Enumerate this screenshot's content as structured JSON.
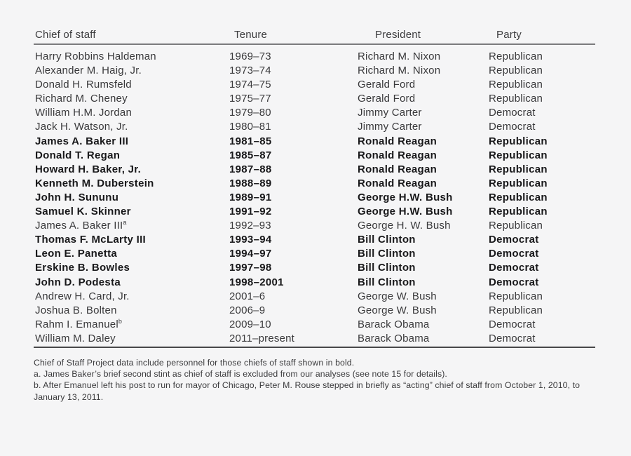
{
  "table": {
    "columns": [
      "Chief of staff",
      "Tenure",
      "President",
      "Party"
    ],
    "rows": [
      {
        "chief": "Harry Robbins Haldeman",
        "sup": "",
        "tenure": "1969–73",
        "president": "Richard M. Nixon",
        "party": "Republican",
        "bold": false
      },
      {
        "chief": "Alexander M. Haig, Jr.",
        "sup": "",
        "tenure": "1973–74",
        "president": "Richard M. Nixon",
        "party": "Republican",
        "bold": false
      },
      {
        "chief": "Donald H. Rumsfeld",
        "sup": "",
        "tenure": "1974–75",
        "president": "Gerald Ford",
        "party": "Republican",
        "bold": false
      },
      {
        "chief": "Richard M. Cheney",
        "sup": "",
        "tenure": "1975–77",
        "president": "Gerald Ford",
        "party": "Republican",
        "bold": false
      },
      {
        "chief": "William H.M. Jordan",
        "sup": "",
        "tenure": "1979–80",
        "president": "Jimmy Carter",
        "party": "Democrat",
        "bold": false
      },
      {
        "chief": "Jack H. Watson, Jr.",
        "sup": "",
        "tenure": "1980–81",
        "president": "Jimmy Carter",
        "party": "Democrat",
        "bold": false
      },
      {
        "chief": "James A. Baker III",
        "sup": "",
        "tenure": "1981–85",
        "president": "Ronald Reagan",
        "party": "Republican",
        "bold": true
      },
      {
        "chief": "Donald T. Regan",
        "sup": "",
        "tenure": "1985–87",
        "president": "Ronald Reagan",
        "party": "Republican",
        "bold": true
      },
      {
        "chief": "Howard H. Baker, Jr.",
        "sup": "",
        "tenure": "1987–88",
        "president": "Ronald Reagan",
        "party": "Republican",
        "bold": true
      },
      {
        "chief": "Kenneth M. Duberstein",
        "sup": "",
        "tenure": "1988–89",
        "president": "Ronald Reagan",
        "party": "Republican",
        "bold": true
      },
      {
        "chief": "John H. Sununu",
        "sup": "",
        "tenure": "1989–91",
        "president": "George H.W. Bush",
        "party": "Republican",
        "bold": true
      },
      {
        "chief": "Samuel K. Skinner",
        "sup": "",
        "tenure": "1991–92",
        "president": "George H.W. Bush",
        "party": "Republican",
        "bold": true
      },
      {
        "chief": "James A. Baker III",
        "sup": "a",
        "tenure": "1992–93",
        "president": "George H. W. Bush",
        "party": "Republican",
        "bold": false
      },
      {
        "chief": "Thomas F. McLarty III",
        "sup": "",
        "tenure": "1993–94",
        "president": "Bill Clinton",
        "party": "Democrat",
        "bold": true
      },
      {
        "chief": "Leon E. Panetta",
        "sup": "",
        "tenure": "1994–97",
        "president": "Bill Clinton",
        "party": "Democrat",
        "bold": true
      },
      {
        "chief": "Erskine B. Bowles",
        "sup": "",
        "tenure": "1997–98",
        "president": "Bill Clinton",
        "party": "Democrat",
        "bold": true
      },
      {
        "chief": "John D. Podesta",
        "sup": "",
        "tenure": "1998–2001",
        "president": "Bill Clinton",
        "party": "Democrat",
        "bold": true
      },
      {
        "chief": "Andrew H. Card, Jr.",
        "sup": "",
        "tenure": "2001–6",
        "president": "George W. Bush",
        "party": "Republican",
        "bold": false
      },
      {
        "chief": "Joshua B. Bolten",
        "sup": "",
        "tenure": "2006–9",
        "president": "George W. Bush",
        "party": "Republican",
        "bold": false
      },
      {
        "chief": "Rahm I. Emanuel",
        "sup": "b",
        "tenure": "2009–10",
        "president": "Barack Obama",
        "party": "Democrat",
        "bold": false
      },
      {
        "chief": "William M. Daley",
        "sup": "",
        "tenure": "2011–present",
        "president": "Barack Obama",
        "party": "Democrat",
        "bold": false
      }
    ]
  },
  "footnotes": {
    "note": "Chief of Staff Project data include personnel for those chiefs of staff shown in bold.",
    "note_a": "a. James Baker’s brief second stint as chief of staff is excluded from our analyses (see note 15 for details).",
    "note_b": "b. After Emanuel left his post to run for mayor of Chicago, Peter M. Rouse stepped in briefly as “acting” chief of staff from October 1, 2010, to January 13, 2011."
  },
  "colors": {
    "background": "#f5f5f6",
    "text": "#39393b",
    "bold_text": "#18181a",
    "header_rule": "#7b7b7d",
    "bottom_rule": "#48484a"
  }
}
